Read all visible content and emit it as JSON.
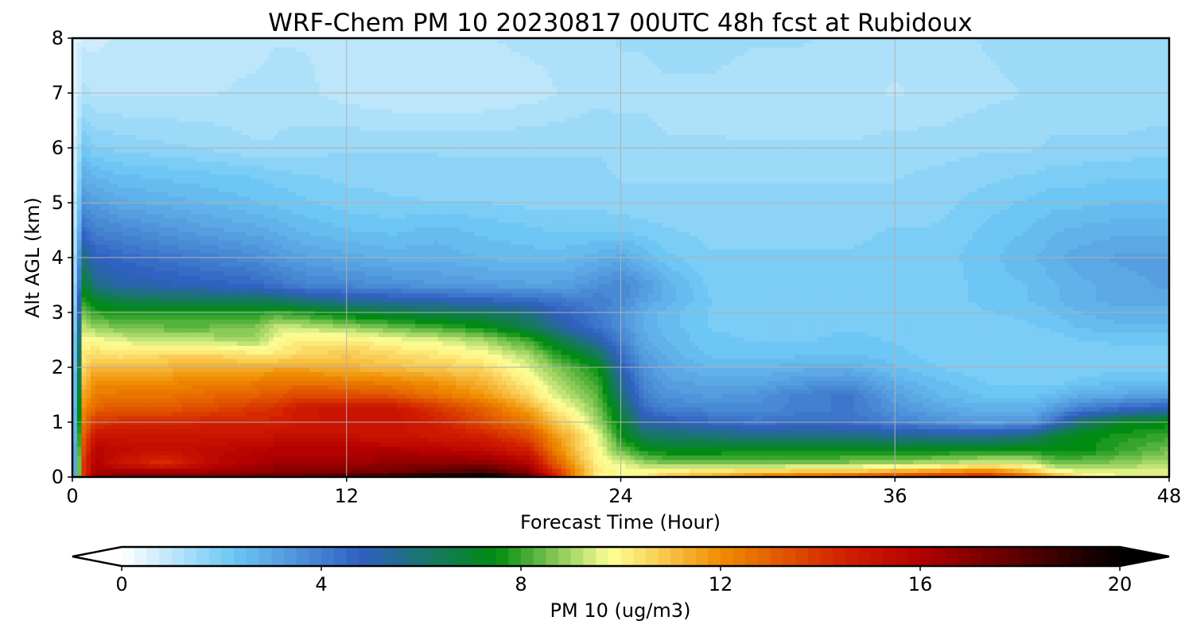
{
  "chart_data": {
    "type": "heatmap",
    "title": "WRF-Chem PM 10  20230817 00UTC 48h fcst at Rubidoux",
    "xlabel": "Forecast Time (Hour)",
    "ylabel": "Alt AGL (km)",
    "xlim": [
      0,
      48
    ],
    "ylim": [
      0,
      8
    ],
    "xticks": [
      0,
      12,
      24,
      36,
      48
    ],
    "yticks": [
      0,
      1,
      2,
      3,
      4,
      5,
      6,
      7,
      8
    ],
    "grid": true,
    "colorbar": {
      "label": "PM 10  (ug/m3)",
      "ticks": [
        0,
        4,
        8,
        12,
        16,
        20
      ],
      "range": [
        0,
        20
      ],
      "extend": "both",
      "stops": [
        {
          "v": 0,
          "c": "#ffffff"
        },
        {
          "v": 2.2,
          "c": "#6ec8f5"
        },
        {
          "v": 4.8,
          "c": "#3060c0"
        },
        {
          "v": 7.5,
          "c": "#008c10"
        },
        {
          "v": 9.8,
          "c": "#ffff96"
        },
        {
          "v": 12,
          "c": "#f08c00"
        },
        {
          "v": 14.5,
          "c": "#d21e00"
        },
        {
          "v": 16,
          "c": "#b40000"
        },
        {
          "v": 20,
          "c": "#000000"
        }
      ]
    },
    "x": [
      0,
      0.5,
      1,
      2,
      4,
      6,
      8,
      9,
      10,
      12,
      14,
      16,
      18,
      20,
      21,
      22,
      23,
      24,
      25,
      26,
      28,
      30,
      32,
      34,
      36,
      38,
      40,
      42,
      43,
      44,
      46,
      48
    ],
    "y": [
      0,
      0.1,
      0.25,
      0.5,
      0.75,
      1,
      1.25,
      1.5,
      1.75,
      2,
      2.25,
      2.5,
      2.75,
      3,
      3.25,
      3.5,
      4,
      4.5,
      5,
      5.5,
      6,
      7,
      8
    ],
    "z": [
      [
        0.3,
        14.0,
        16.5,
        17.0,
        17.5,
        17.5,
        17.8,
        18.0,
        18.0,
        18.5,
        19.0,
        20.0,
        20.5,
        18.0,
        15.0,
        12.0,
        10.0,
        9.8,
        10.0,
        11.0,
        11.5,
        12.5,
        13.0,
        13.5,
        14.0,
        14.5,
        14.5,
        13.0,
        11.5,
        10.5,
        9.5,
        9.5
      ],
      [
        0.3,
        14.0,
        16.2,
        16.5,
        16.5,
        16.5,
        16.8,
        17.0,
        17.0,
        17.2,
        17.5,
        18.0,
        18.5,
        17.0,
        14.5,
        12.0,
        10.2,
        9.8,
        9.8,
        10.2,
        10.5,
        10.8,
        11.0,
        11.0,
        11.5,
        12.0,
        12.5,
        11.0,
        10.0,
        9.7,
        9.5,
        9.5
      ],
      [
        0.3,
        14.0,
        16.0,
        15.0,
        14.0,
        15.5,
        16.2,
        16.5,
        16.5,
        16.5,
        16.8,
        17.0,
        17.0,
        16.0,
        13.5,
        11.5,
        10.0,
        9.6,
        9.0,
        8.6,
        8.6,
        8.6,
        8.6,
        8.8,
        9.0,
        9.2,
        9.6,
        9.5,
        8.6,
        8.6,
        8.8,
        9.2
      ],
      [
        0.3,
        13.5,
        15.8,
        15.5,
        15.2,
        15.5,
        15.8,
        16.0,
        16.0,
        16.0,
        16.0,
        15.8,
        15.5,
        14.5,
        12.5,
        11.0,
        9.8,
        8.5,
        7.6,
        7.3,
        7.3,
        7.4,
        7.4,
        7.3,
        7.3,
        7.4,
        7.5,
        7.6,
        7.4,
        7.4,
        8.0,
        8.5
      ],
      [
        0.3,
        13.0,
        15.0,
        15.0,
        15.0,
        15.0,
        15.0,
        15.2,
        15.2,
        15.2,
        15.0,
        14.8,
        14.5,
        13.5,
        12.0,
        10.8,
        9.6,
        7.7,
        6.3,
        6.2,
        6.0,
        5.8,
        5.8,
        5.8,
        5.6,
        5.5,
        5.5,
        6.0,
        7.0,
        7.4,
        7.8,
        8.0
      ],
      [
        0.3,
        12.5,
        14.0,
        14.2,
        14.2,
        14.5,
        14.5,
        14.5,
        14.8,
        15.0,
        15.0,
        14.5,
        13.5,
        12.5,
        11.0,
        10.2,
        9.0,
        7.2,
        5.3,
        5.0,
        4.6,
        4.3,
        4.5,
        4.4,
        4.0,
        3.6,
        3.3,
        3.5,
        4.5,
        6.0,
        7.2,
        7.5
      ],
      [
        0.3,
        12.0,
        13.0,
        13.2,
        13.2,
        13.5,
        14.0,
        14.2,
        14.8,
        15.0,
        15.0,
        14.0,
        13.0,
        11.5,
        10.2,
        9.6,
        8.6,
        6.7,
        4.5,
        4.0,
        3.8,
        3.7,
        4.0,
        4.2,
        3.5,
        3.0,
        2.8,
        2.8,
        3.3,
        4.0,
        4.6,
        5.0
      ],
      [
        0.3,
        11.5,
        12.3,
        12.5,
        12.5,
        12.8,
        13.0,
        13.2,
        13.5,
        13.5,
        13.2,
        12.5,
        11.8,
        10.5,
        9.6,
        9.0,
        8.3,
        6.0,
        4.0,
        3.5,
        3.3,
        3.5,
        4.0,
        4.2,
        3.2,
        2.6,
        2.3,
        2.3,
        2.5,
        2.8,
        3.0,
        3.2
      ],
      [
        0.3,
        11.0,
        12.0,
        12.0,
        12.0,
        12.2,
        12.3,
        12.5,
        12.5,
        12.3,
        12.2,
        11.8,
        11.2,
        10.0,
        9.2,
        8.6,
        8.0,
        5.5,
        3.8,
        3.2,
        3.0,
        3.0,
        3.3,
        3.5,
        2.8,
        2.4,
        2.1,
        2.0,
        2.0,
        2.2,
        2.4,
        2.4
      ],
      [
        0.3,
        10.5,
        11.2,
        11.0,
        11.2,
        11.5,
        11.3,
        11.5,
        11.5,
        11.3,
        11.0,
        10.8,
        10.5,
        9.5,
        8.8,
        8.2,
        7.6,
        5.0,
        3.5,
        3.0,
        2.6,
        2.6,
        2.8,
        2.8,
        2.4,
        2.1,
        1.9,
        1.9,
        1.9,
        1.9,
        2.0,
        2.0
      ],
      [
        0.3,
        10.2,
        10.5,
        10.2,
        10.5,
        10.5,
        10.2,
        10.2,
        10.5,
        10.8,
        10.5,
        10.2,
        9.8,
        9.0,
        8.0,
        7.3,
        6.3,
        4.5,
        3.2,
        2.8,
        2.3,
        2.2,
        2.3,
        2.4,
        2.2,
        2.0,
        1.9,
        1.9,
        1.9,
        1.9,
        2.0,
        2.0
      ],
      [
        0.3,
        9.8,
        9.8,
        9.5,
        9.2,
        9.2,
        9.0,
        9.8,
        10.2,
        10.2,
        9.8,
        9.5,
        9.0,
        8.0,
        7.0,
        6.0,
        5.2,
        4.0,
        3.0,
        2.6,
        2.2,
        2.1,
        2.1,
        2.2,
        2.1,
        1.9,
        1.9,
        2.0,
        2.0,
        2.1,
        2.2,
        2.2
      ],
      [
        0.3,
        9.2,
        8.8,
        8.6,
        8.4,
        8.4,
        8.6,
        9.3,
        9.2,
        8.8,
        8.4,
        8.0,
        7.5,
        6.5,
        5.5,
        4.8,
        4.3,
        3.6,
        2.8,
        2.5,
        2.1,
        2.0,
        2.0,
        2.1,
        2.0,
        1.9,
        2.0,
        2.1,
        2.2,
        2.4,
        2.6,
        2.6
      ],
      [
        0.3,
        8.5,
        7.9,
        7.7,
        7.7,
        7.7,
        7.8,
        8.0,
        7.8,
        7.2,
        6.8,
        6.5,
        6.3,
        5.8,
        5.0,
        4.5,
        4.1,
        3.6,
        2.8,
        2.5,
        2.1,
        2.0,
        2.0,
        2.0,
        2.0,
        2.0,
        2.1,
        2.2,
        2.4,
        2.6,
        2.8,
        2.8
      ],
      [
        0.3,
        7.8,
        7.0,
        6.5,
        6.3,
        6.2,
        6.2,
        6.0,
        5.6,
        5.2,
        5.0,
        4.8,
        4.6,
        4.4,
        4.2,
        4.0,
        4.0,
        3.8,
        3.2,
        2.8,
        2.1,
        2.0,
        2.0,
        2.0,
        2.0,
        2.0,
        2.2,
        2.4,
        2.6,
        2.8,
        3.0,
        3.0
      ],
      [
        0.3,
        7.0,
        5.8,
        5.2,
        5.0,
        4.8,
        4.6,
        4.3,
        4.0,
        3.8,
        3.6,
        3.4,
        3.3,
        3.2,
        3.2,
        3.3,
        3.6,
        3.8,
        3.4,
        2.8,
        2.0,
        1.9,
        1.9,
        1.9,
        2.0,
        2.0,
        2.2,
        2.4,
        2.6,
        2.8,
        3.0,
        3.2
      ],
      [
        0.3,
        5.8,
        4.8,
        4.6,
        4.3,
        4.0,
        3.7,
        3.4,
        3.2,
        3.0,
        2.8,
        2.8,
        2.6,
        2.5,
        2.5,
        2.6,
        2.8,
        3.0,
        2.6,
        2.2,
        1.9,
        1.9,
        1.9,
        1.9,
        2.0,
        2.0,
        2.3,
        2.6,
        2.8,
        3.0,
        3.2,
        3.2
      ],
      [
        0.3,
        4.5,
        4.0,
        3.8,
        3.5,
        3.2,
        3.0,
        2.8,
        2.6,
        2.4,
        2.3,
        2.5,
        2.3,
        2.2,
        2.1,
        2.1,
        2.1,
        2.1,
        2.0,
        1.9,
        1.8,
        1.8,
        1.8,
        1.8,
        1.9,
        1.9,
        2.2,
        2.4,
        2.6,
        2.7,
        2.8,
        2.8
      ],
      [
        0.3,
        3.5,
        3.3,
        3.0,
        2.8,
        2.6,
        2.4,
        2.3,
        2.2,
        2.0,
        1.9,
        1.9,
        1.9,
        1.8,
        1.8,
        1.8,
        1.8,
        1.7,
        1.7,
        1.7,
        1.7,
        1.7,
        1.7,
        1.7,
        1.7,
        1.8,
        2.0,
        2.2,
        2.3,
        2.3,
        2.4,
        2.4
      ],
      [
        0.3,
        2.8,
        2.6,
        2.4,
        2.3,
        2.2,
        2.1,
        2.0,
        1.9,
        1.8,
        1.8,
        1.7,
        1.7,
        1.7,
        1.7,
        1.7,
        1.7,
        1.6,
        1.6,
        1.6,
        1.6,
        1.6,
        1.6,
        1.6,
        1.6,
        1.7,
        1.8,
        1.9,
        2.0,
        2.0,
        2.1,
        2.1
      ],
      [
        0.3,
        2.2,
        1.9,
        1.8,
        1.7,
        1.6,
        1.4,
        1.4,
        1.5,
        1.6,
        1.6,
        1.6,
        1.6,
        1.6,
        1.6,
        1.6,
        1.6,
        1.5,
        1.5,
        1.4,
        1.4,
        1.4,
        1.4,
        1.4,
        1.5,
        1.5,
        1.6,
        1.6,
        1.7,
        1.7,
        1.7,
        1.8
      ],
      [
        0.3,
        1.2,
        1.1,
        1.1,
        1.1,
        1.1,
        1.2,
        1.3,
        1.2,
        1.0,
        0.9,
        0.9,
        0.9,
        1.0,
        1.1,
        1.2,
        1.3,
        1.3,
        1.3,
        1.3,
        1.3,
        1.2,
        1.2,
        1.2,
        1.1,
        1.2,
        1.3,
        1.4,
        1.4,
        1.4,
        1.4,
        1.4
      ],
      [
        0.3,
        0.8,
        0.8,
        0.9,
        0.9,
        1.0,
        1.0,
        1.1,
        1.1,
        1.1,
        1.1,
        1.1,
        1.1,
        1.2,
        1.2,
        1.3,
        1.3,
        1.4,
        1.4,
        1.5,
        1.5,
        1.4,
        1.4,
        1.3,
        1.2,
        1.3,
        1.4,
        1.5,
        1.5,
        1.5,
        1.6,
        1.6
      ]
    ]
  }
}
